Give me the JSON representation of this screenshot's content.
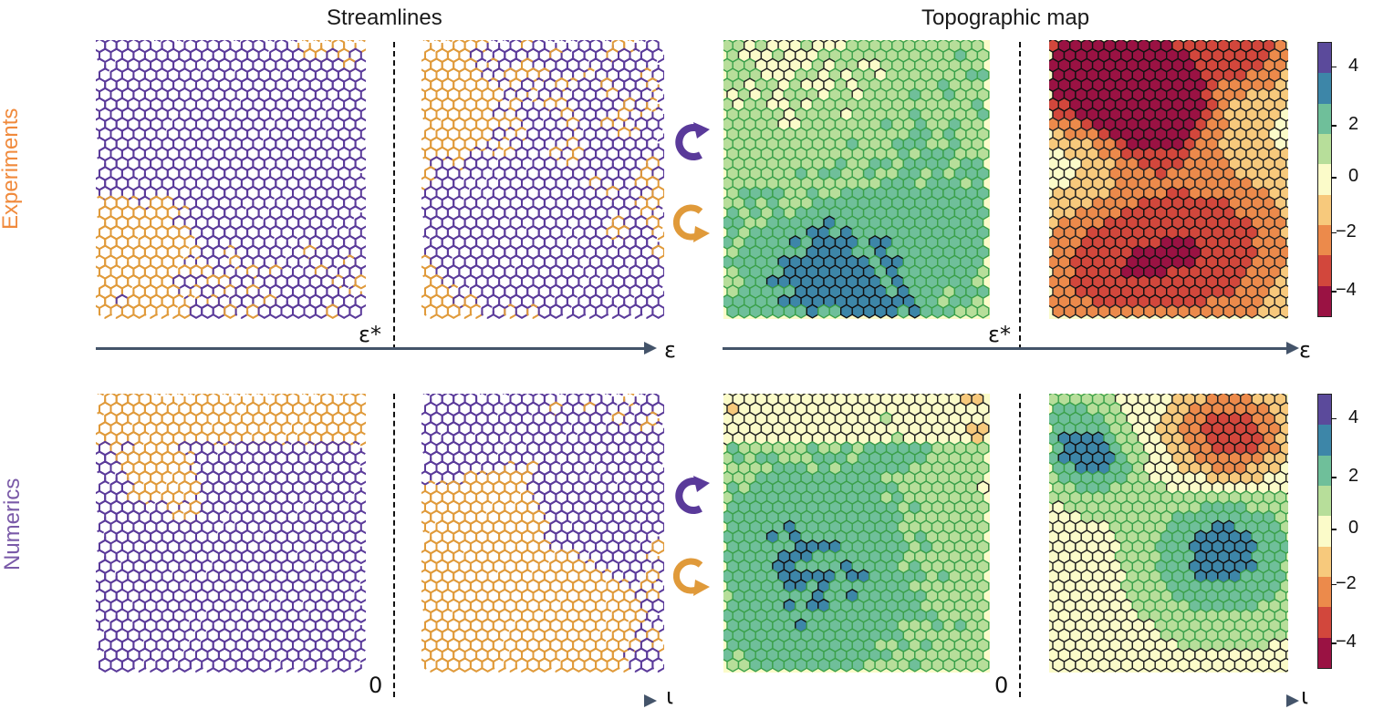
{
  "titles": {
    "streamlines": "Streamlines",
    "topographic": "Topographic map"
  },
  "rows": {
    "experiments": "Experiments",
    "numerics": "Numerics"
  },
  "axes": {
    "top_left_critical": "ε*",
    "top_left_end": "ε",
    "top_right_critical": "ε*",
    "top_right_end": "ε",
    "bottom_left_critical": "0",
    "bottom_left_end": "ι",
    "bottom_right_critical": "0",
    "bottom_right_end": "ι"
  },
  "colorbar": {
    "ticks": [
      "4",
      "2",
      "0",
      "−2",
      "−4"
    ],
    "colors": [
      "#5b4a9b",
      "#3d86a8",
      "#6fbf9a",
      "#b7de9a",
      "#fbfbc9",
      "#f7c97c",
      "#ec8a4b",
      "#d2473c",
      "#9a1243"
    ]
  },
  "colors": {
    "purple": "#5a3a9a",
    "orange": "#e09a3a",
    "axis": "#44546a",
    "row_experiments": "#f08a3c",
    "row_numerics": "#7a5aa8"
  },
  "icons": {
    "ccw": "rotation-counterclockwise-icon",
    "cw": "rotation-clockwise-icon"
  }
}
